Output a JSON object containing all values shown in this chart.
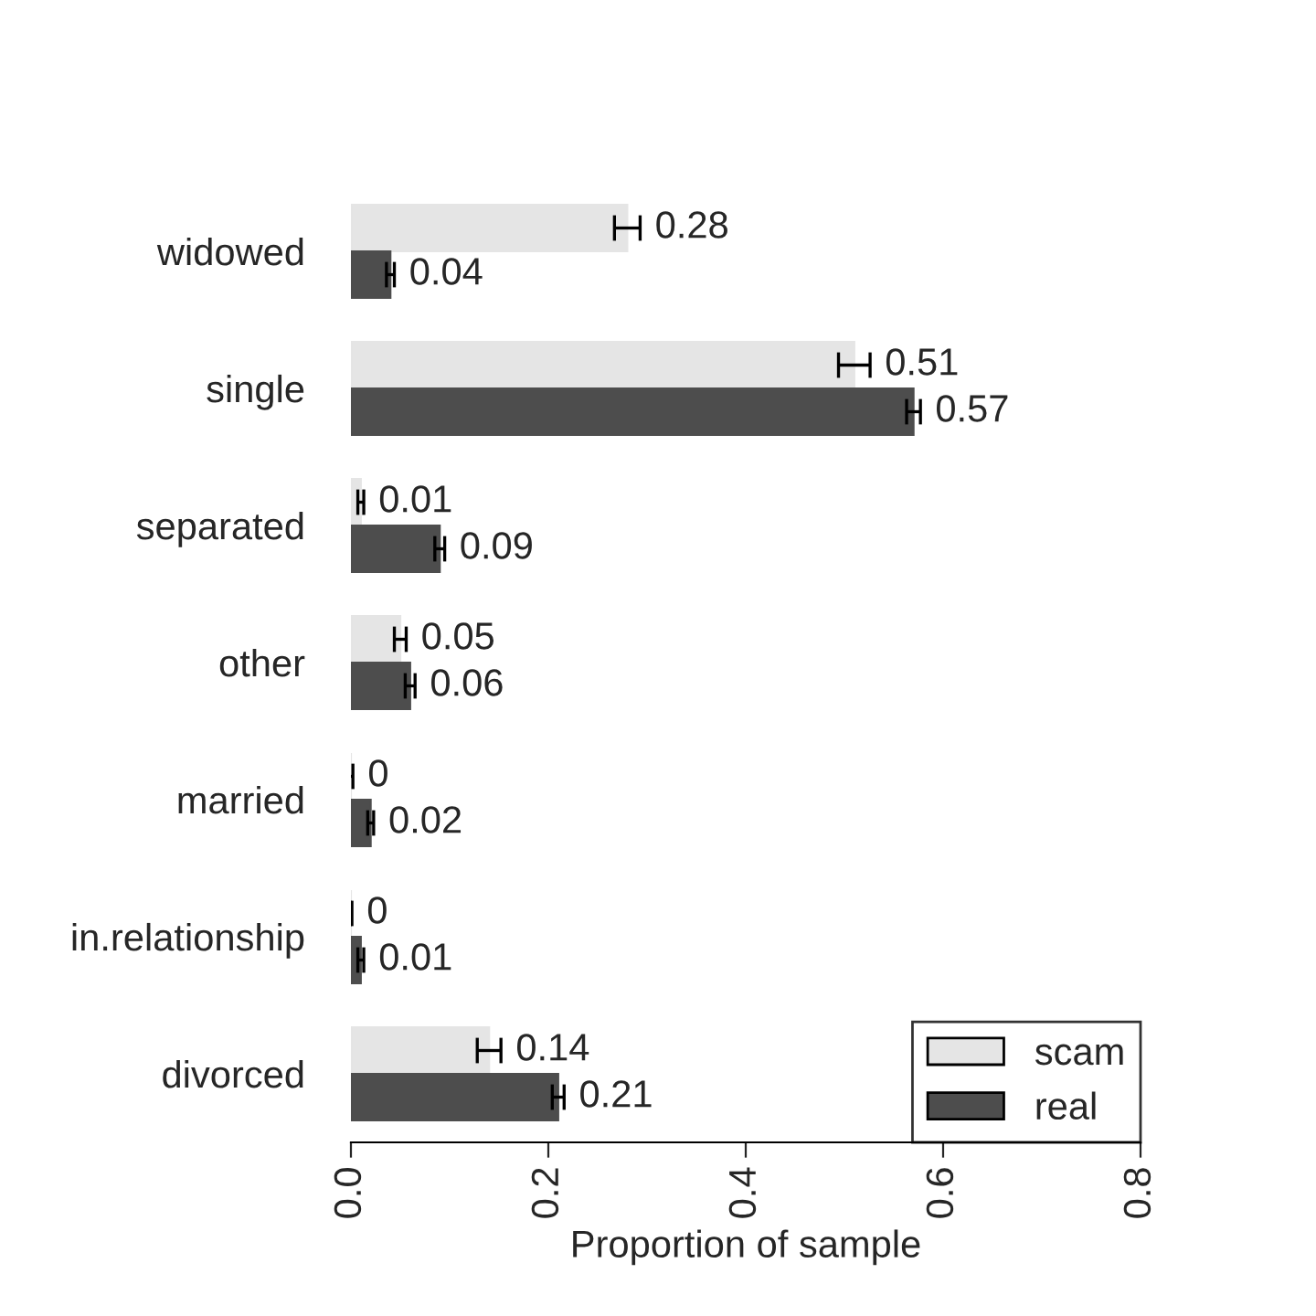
{
  "chart_data": {
    "type": "bar",
    "orientation": "horizontal",
    "xlabel": "Proportion of sample",
    "categories": [
      "widowed",
      "single",
      "separated",
      "other",
      "married",
      "in.relationship",
      "divorced"
    ],
    "series": [
      {
        "name": "scam",
        "color": "#e5e5e5",
        "values": [
          0.28,
          0.51,
          0.01,
          0.05,
          0,
          0,
          0.14
        ],
        "errors": [
          0.013,
          0.016,
          0.003,
          0.006,
          0.002,
          0.001,
          0.012
        ]
      },
      {
        "name": "real",
        "color": "#4d4d4d",
        "values": [
          0.04,
          0.57,
          0.09,
          0.06,
          0.02,
          0.01,
          0.21
        ],
        "errors": [
          0.004,
          0.007,
          0.005,
          0.005,
          0.003,
          0.003,
          0.006
        ]
      }
    ],
    "xlim": [
      0,
      0.8
    ],
    "xticks": [
      {
        "value": 0,
        "label": "0.0"
      },
      {
        "value": 0.2,
        "label": "0.2"
      },
      {
        "value": 0.4,
        "label": "0.4"
      },
      {
        "value": 0.6,
        "label": "0.6"
      },
      {
        "value": 0.8,
        "label": "0.8"
      }
    ],
    "data_labels": true,
    "legend": "bottom right",
    "grid": false
  }
}
